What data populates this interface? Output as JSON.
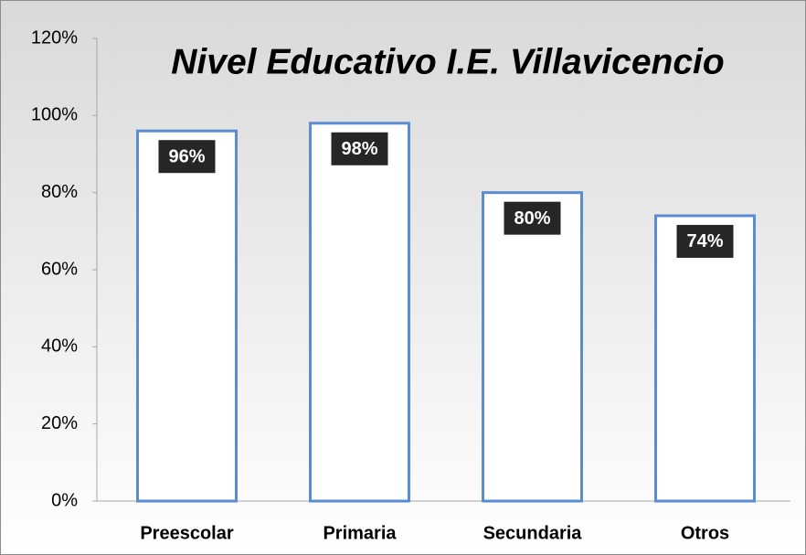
{
  "chart_data": {
    "type": "bar",
    "title": "Nivel Educativo I.E. Villavicencio",
    "categories": [
      "Preescolar",
      "Primaria",
      "Secundaria",
      "Otros"
    ],
    "values": [
      96,
      98,
      80,
      74
    ],
    "value_labels": [
      "96%",
      "98%",
      "80%",
      "74%"
    ],
    "color": "#5b8bd0",
    "ylim": [
      0,
      120
    ],
    "yticks": [
      {
        "value": 0,
        "label": "0%"
      },
      {
        "value": 20,
        "label": "20%"
      },
      {
        "value": 40,
        "label": "40%"
      },
      {
        "value": 60,
        "label": "60%"
      },
      {
        "value": 80,
        "label": "80%"
      },
      {
        "value": 100,
        "label": "100%"
      },
      {
        "value": 120,
        "label": "120%"
      }
    ],
    "grid": false
  }
}
